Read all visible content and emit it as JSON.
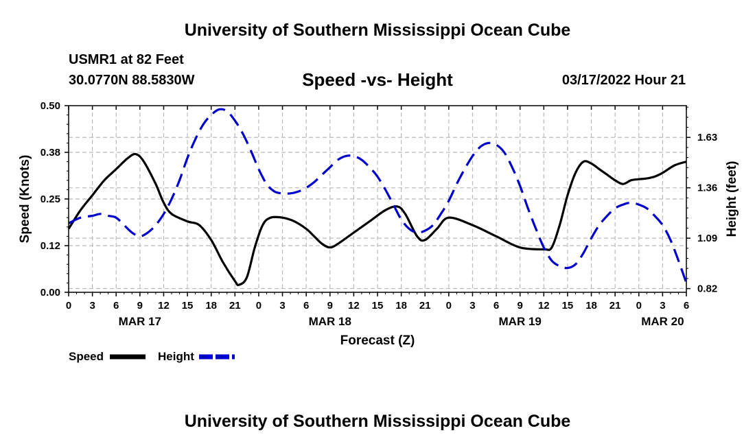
{
  "header": {
    "org_title": "University of Southern Mississippi Ocean Cube",
    "station": "USMR1 at 82 Feet",
    "coords": "30.0770N  88.5830W",
    "chart_title": "Speed -vs- Height",
    "timestamp": "03/17/2022 Hour 21"
  },
  "footer": {
    "org_title": "University of Southern Mississippi Ocean Cube"
  },
  "colors": {
    "speed": "#000000",
    "height": "#0000cc",
    "grid": "#bbbbbb"
  },
  "chart_data": {
    "type": "line",
    "title": "Speed -vs- Height",
    "xlabel": "Forecast (Z)",
    "ylabel": "Speed (Knots)",
    "y2label": "Height (feet)",
    "xlim": [
      0,
      78
    ],
    "ylim": [
      0,
      0.5
    ],
    "y2lim": [
      0.8,
      1.8
    ],
    "x_tick_hours": [
      0,
      3,
      6,
      9,
      12,
      15,
      18,
      21,
      24,
      27,
      30,
      33,
      36,
      39,
      42,
      45,
      48,
      51,
      54,
      57,
      60,
      63,
      66,
      69,
      72,
      75,
      78
    ],
    "x_tick_labels": [
      "0",
      "3",
      "6",
      "9",
      "12",
      "15",
      "18",
      "21",
      "0",
      "3",
      "6",
      "9",
      "12",
      "15",
      "18",
      "21",
      "0",
      "3",
      "6",
      "9",
      "12",
      "15",
      "18",
      "21",
      "0",
      "3",
      "6"
    ],
    "date_labels": [
      {
        "label": "MAR 17",
        "hour": 9
      },
      {
        "label": "MAR 18",
        "hour": 33
      },
      {
        "label": "MAR 19",
        "hour": 57
      },
      {
        "label": "MAR 20",
        "hour": 75
      }
    ],
    "y_ticks": [
      0.0,
      0.125,
      0.25,
      0.375,
      0.5
    ],
    "y_tick_labels": [
      "0.00",
      "0.12",
      "0.25",
      "0.38",
      "0.50"
    ],
    "y2_ticks": [
      0.82,
      1.09,
      1.36,
      1.63
    ],
    "y2_tick_labels": [
      "0.82",
      "1.09",
      "1.36",
      "1.63"
    ],
    "legend": {
      "position": "bottom-left",
      "speed_label": "Speed",
      "height_label": "Height"
    },
    "series": [
      {
        "name": "Speed",
        "axis": "left",
        "style": "solid",
        "x": [
          0,
          1.5,
          3,
          4.5,
          6,
          7.5,
          8.5,
          9.5,
          11,
          12,
          13,
          15,
          16.5,
          18,
          19.5,
          21,
          21.5,
          22.5,
          23.5,
          24.5,
          25.5,
          27,
          28.5,
          30,
          31,
          32,
          33,
          34,
          36,
          38,
          40,
          41.5,
          42.5,
          44,
          45,
          46.5,
          48,
          51,
          54,
          57,
          60,
          61,
          62,
          63,
          64,
          65,
          66,
          67,
          68,
          69,
          70,
          71,
          72,
          73,
          74,
          75,
          76.5,
          78
        ],
        "y": [
          0.17,
          0.22,
          0.26,
          0.3,
          0.33,
          0.36,
          0.37,
          0.35,
          0.29,
          0.24,
          0.21,
          0.19,
          0.18,
          0.14,
          0.08,
          0.03,
          0.02,
          0.04,
          0.12,
          0.18,
          0.2,
          0.2,
          0.19,
          0.17,
          0.15,
          0.13,
          0.12,
          0.13,
          0.16,
          0.19,
          0.22,
          0.23,
          0.21,
          0.15,
          0.14,
          0.17,
          0.2,
          0.18,
          0.15,
          0.12,
          0.115,
          0.12,
          0.18,
          0.26,
          0.32,
          0.35,
          0.345,
          0.33,
          0.315,
          0.3,
          0.29,
          0.3,
          0.303,
          0.305,
          0.31,
          0.32,
          0.34,
          0.35
        ]
      },
      {
        "name": "Height",
        "axis": "right",
        "style": "dashed",
        "x": [
          0,
          1.5,
          3,
          4,
          5,
          6,
          7,
          8,
          9,
          10,
          11,
          12,
          13,
          14,
          15,
          16,
          17,
          18,
          19,
          20,
          21,
          22,
          23,
          24,
          25,
          26,
          27,
          28,
          29,
          30,
          31,
          32,
          33,
          34,
          35,
          36,
          37,
          38,
          39,
          40,
          41,
          42,
          43,
          44,
          45,
          46,
          47,
          48,
          49,
          50,
          51,
          52,
          53,
          54,
          55,
          56,
          57,
          58,
          59,
          60,
          61,
          62,
          63,
          64,
          65,
          66,
          67,
          68,
          69,
          70,
          71,
          72,
          73,
          74,
          75,
          76,
          77,
          78
        ],
        "y": [
          1.17,
          1.2,
          1.21,
          1.22,
          1.21,
          1.2,
          1.16,
          1.12,
          1.1,
          1.12,
          1.16,
          1.22,
          1.3,
          1.4,
          1.52,
          1.62,
          1.7,
          1.75,
          1.78,
          1.77,
          1.72,
          1.65,
          1.56,
          1.46,
          1.38,
          1.34,
          1.33,
          1.33,
          1.34,
          1.36,
          1.39,
          1.43,
          1.47,
          1.51,
          1.53,
          1.53,
          1.51,
          1.47,
          1.42,
          1.35,
          1.27,
          1.19,
          1.14,
          1.12,
          1.13,
          1.16,
          1.22,
          1.29,
          1.38,
          1.46,
          1.53,
          1.58,
          1.6,
          1.59,
          1.55,
          1.47,
          1.37,
          1.25,
          1.14,
          1.04,
          0.97,
          0.94,
          0.93,
          0.95,
          1.01,
          1.09,
          1.16,
          1.21,
          1.25,
          1.27,
          1.28,
          1.27,
          1.25,
          1.21,
          1.16,
          1.08,
          0.97,
          0.85
        ]
      }
    ]
  }
}
